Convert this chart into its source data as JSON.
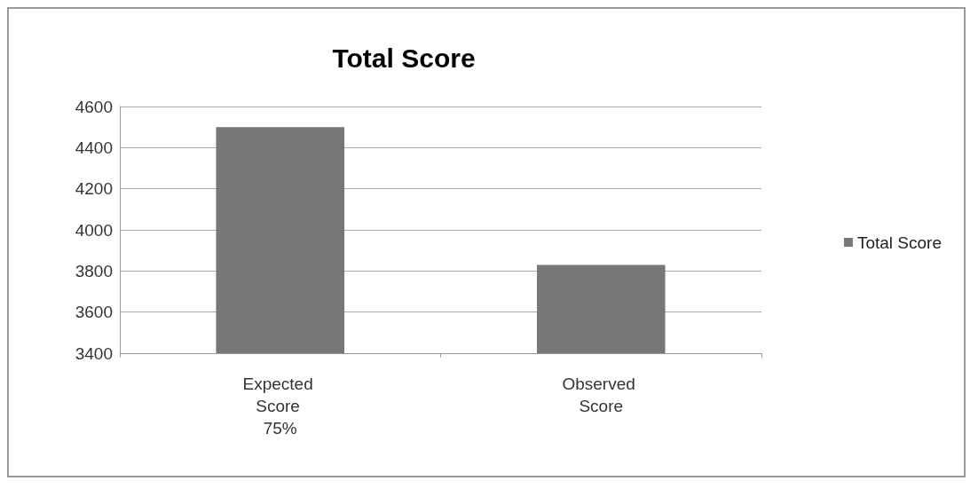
{
  "chart_data": {
    "type": "bar",
    "title": "Total Score",
    "categories": [
      "Expected Score 75%",
      "Observed Score"
    ],
    "series": [
      {
        "name": "Total Score",
        "color": "#777777",
        "values": [
          4500,
          3830
        ]
      }
    ],
    "ylim": [
      3400,
      4600
    ],
    "yticks": [
      3400,
      3600,
      3800,
      4000,
      4200,
      4400,
      4600
    ],
    "grid": "y",
    "legend": "right"
  }
}
